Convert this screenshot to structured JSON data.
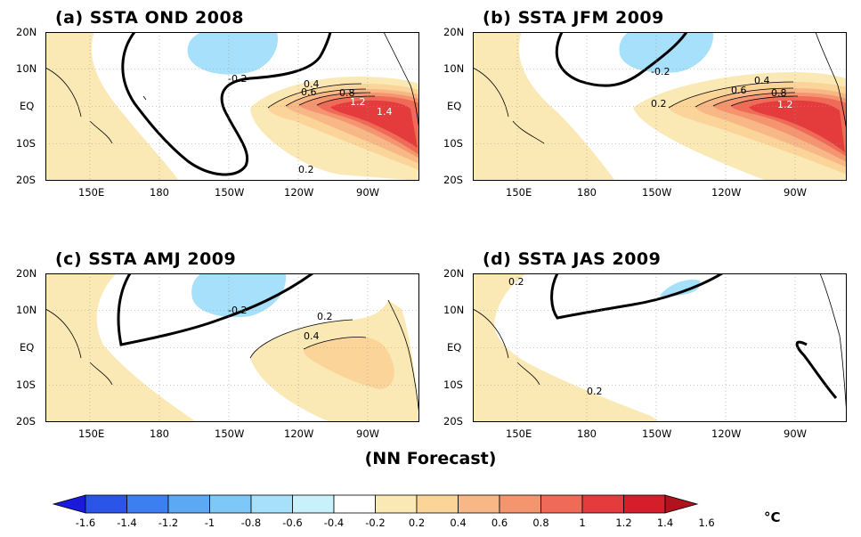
{
  "panels": [
    {
      "title": "(a) SSTA OND 2008",
      "contour_labels": [
        "-0.2",
        "0.4",
        "0.6",
        "0.8",
        "1.2",
        "1.4",
        "0.2"
      ]
    },
    {
      "title": "(b) SSTA JFM 2009",
      "contour_labels": [
        "-0.2",
        "0.4",
        "0.6",
        "0.8",
        "1.2",
        "0.2"
      ]
    },
    {
      "title": "(c) SSTA AMJ 2009",
      "contour_labels": [
        "-0.2",
        "0.2",
        "0.4"
      ]
    },
    {
      "title": "(d) SSTA JAS 2009",
      "contour_labels": [
        "0.2",
        "0.2"
      ]
    }
  ],
  "lat_labels": [
    "20N",
    "10N",
    "EQ",
    "10S",
    "20S"
  ],
  "lon_labels": [
    "150E",
    "180",
    "150W",
    "120W",
    "90W"
  ],
  "caption": "(NN Forecast)",
  "colorbar": {
    "ticks": [
      "-1.6",
      "-1.4",
      "-1.2",
      "-1",
      "-0.8",
      "-0.6",
      "-0.4",
      "-0.2",
      "0.2",
      "0.4",
      "0.6",
      "0.8",
      "1",
      "1.2",
      "1.4",
      "1.6"
    ],
    "unit": "°C",
    "colors": [
      "#1a1adc",
      "#2a55e6",
      "#3d7ff0",
      "#5ca8f5",
      "#7ec8f8",
      "#a6e0fa",
      "#c8f1fb",
      "#ffffff",
      "#fbe9b5",
      "#fbd49a",
      "#f8b787",
      "#f59570",
      "#ef6b58",
      "#e43c3c",
      "#d41e2b",
      "#b0121e"
    ]
  },
  "colors": {
    "land": "#fbe9b5",
    "neg": "#a6e0fa"
  }
}
